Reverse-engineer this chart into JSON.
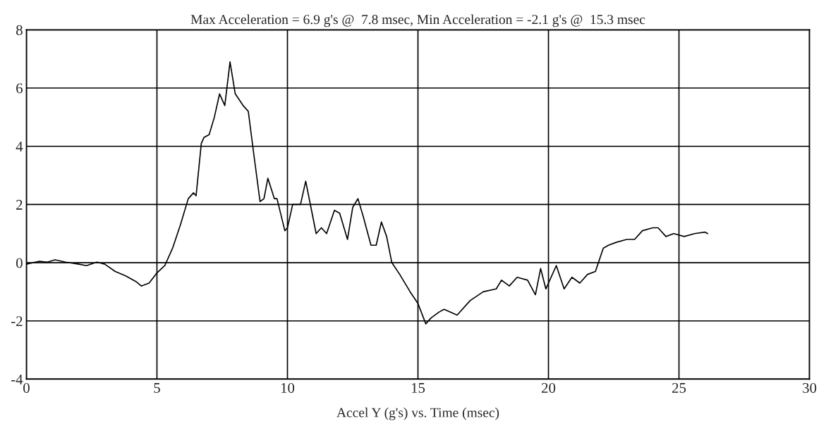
{
  "chart_data": {
    "type": "line",
    "title": "Max Acceleration = 6.9 g's @  7.8 msec, Min Acceleration = -2.1 g's @  15.3 msec",
    "xlabel": "Accel Y (g's) vs. Time (msec)",
    "xlim": [
      0,
      30
    ],
    "ylim": [
      -4,
      8
    ],
    "xticks": [
      0,
      5,
      10,
      15,
      20,
      25,
      30
    ],
    "yticks": [
      -4,
      -2,
      0,
      2,
      4,
      6,
      8
    ],
    "grid": true,
    "marker": "none",
    "line_style": "solid",
    "series": [
      {
        "color": "#000000",
        "x": [
          0,
          0.5,
          0.8,
          1.1,
          1.5,
          2.0,
          2.3,
          2.7,
          3.0,
          3.4,
          3.8,
          4.2,
          4.4,
          4.7,
          5.0,
          5.3,
          5.6,
          5.9,
          6.2,
          6.4,
          6.5,
          6.7,
          6.8,
          7.0,
          7.2,
          7.4,
          7.6,
          7.8,
          8.0,
          8.3,
          8.5,
          8.7,
          8.95,
          9.1,
          9.25,
          9.5,
          9.6,
          9.9,
          10.0,
          10.2,
          10.5,
          10.7,
          10.9,
          11.1,
          11.3,
          11.5,
          11.8,
          12.0,
          12.3,
          12.5,
          12.7,
          12.9,
          13.2,
          13.4,
          13.6,
          13.8,
          14.0,
          14.3,
          14.7,
          15.0,
          15.3,
          15.5,
          15.8,
          16.0,
          16.5,
          17.0,
          17.5,
          18.0,
          18.2,
          18.5,
          18.8,
          19.2,
          19.5,
          19.7,
          19.9,
          20.3,
          20.6,
          20.9,
          21.2,
          21.5,
          21.8,
          22.1,
          22.3,
          22.6,
          23.0,
          23.3,
          23.6,
          24.0,
          24.2,
          24.5,
          24.8,
          25.2,
          25.6,
          26.0,
          26.1
        ],
        "values": [
          -0.05,
          0.05,
          0.02,
          0.1,
          0.02,
          -0.05,
          -0.1,
          0.02,
          -0.05,
          -0.3,
          -0.45,
          -0.65,
          -0.8,
          -0.7,
          -0.35,
          -0.1,
          0.5,
          1.3,
          2.2,
          2.4,
          2.3,
          4.1,
          4.3,
          4.4,
          5.0,
          5.8,
          5.4,
          6.9,
          5.8,
          5.4,
          5.2,
          3.8,
          2.1,
          2.2,
          2.9,
          2.2,
          2.2,
          1.1,
          1.2,
          2.0,
          2.0,
          2.8,
          1.9,
          1.0,
          1.2,
          1.0,
          1.8,
          1.7,
          0.8,
          1.9,
          2.2,
          1.6,
          0.6,
          0.6,
          1.4,
          0.9,
          0.0,
          -0.4,
          -1.0,
          -1.4,
          -2.1,
          -1.9,
          -1.7,
          -1.6,
          -1.8,
          -1.3,
          -1.0,
          -0.9,
          -0.6,
          -0.8,
          -0.5,
          -0.6,
          -1.1,
          -0.2,
          -0.9,
          -0.1,
          -0.9,
          -0.5,
          -0.7,
          -0.4,
          -0.3,
          0.5,
          0.6,
          0.7,
          0.8,
          0.8,
          1.1,
          1.2,
          1.2,
          0.9,
          1.0,
          0.9,
          1.0,
          1.05,
          1.0
        ]
      }
    ]
  }
}
